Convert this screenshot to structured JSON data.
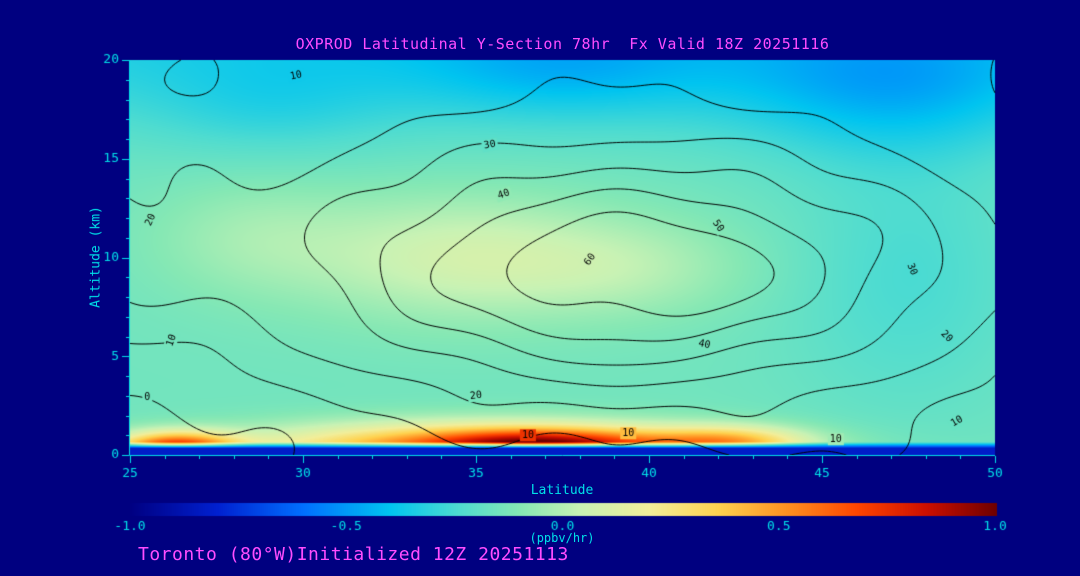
{
  "header": {
    "title": "OXPROD Latitudinal Y-Section 78hr  Fx Valid 18Z 20251116"
  },
  "footer": {
    "text": "Toronto (80°W)Initialized 12Z 20251113"
  },
  "colors": {
    "background": "#000080",
    "title_text": "#ff4dff",
    "axis_text": "#00e0e8",
    "contour": "#000000"
  },
  "chart_data": {
    "type": "heatmap",
    "subtype": "filled-contour-section",
    "title": "OXPROD Latitudinal Y-Section 78hr  Fx Valid 18Z 20251116",
    "xlabel": "Latitude",
    "ylabel": "Altitude (km)",
    "x_range": [
      25,
      50
    ],
    "y_range": [
      0,
      20
    ],
    "x_ticks": [
      "25",
      "30",
      "35",
      "40",
      "45",
      "50"
    ],
    "y_ticks": [
      "0",
      "5",
      "10",
      "15",
      "20"
    ],
    "grid": false,
    "contour_levels": [
      0,
      10,
      20,
      30,
      40,
      50,
      60
    ],
    "contour_labels": [
      {
        "lat": 29.8,
        "z": 19.2,
        "text": "10",
        "rot": -12
      },
      {
        "lat": 25.6,
        "z": 11.9,
        "text": "20",
        "rot": -65
      },
      {
        "lat": 26.2,
        "z": 5.8,
        "text": "10",
        "rot": -70
      },
      {
        "lat": 25.5,
        "z": 2.9,
        "text": "0",
        "rot": 0
      },
      {
        "lat": 35.4,
        "z": 15.7,
        "text": "30",
        "rot": -10
      },
      {
        "lat": 35.8,
        "z": 13.2,
        "text": "40",
        "rot": -18
      },
      {
        "lat": 38.3,
        "z": 9.9,
        "text": "60",
        "rot": -55
      },
      {
        "lat": 42.0,
        "z": 11.6,
        "text": "50",
        "rot": 55
      },
      {
        "lat": 41.6,
        "z": 5.6,
        "text": "40",
        "rot": 12
      },
      {
        "lat": 35.0,
        "z": 3.0,
        "text": "20",
        "rot": -6
      },
      {
        "lat": 47.6,
        "z": 9.4,
        "text": "30",
        "rot": 68
      },
      {
        "lat": 48.6,
        "z": 6.0,
        "text": "20",
        "rot": 45
      },
      {
        "lat": 36.5,
        "z": 1.0,
        "text": "10",
        "rot": 0
      },
      {
        "lat": 39.4,
        "z": 1.1,
        "text": "10",
        "rot": 0
      },
      {
        "lat": 45.4,
        "z": 0.8,
        "text": "10",
        "rot": 0
      },
      {
        "lat": 48.9,
        "z": 1.7,
        "text": "10",
        "rot": -30
      }
    ],
    "colorbar": {
      "min": -1.0,
      "max": 1.0,
      "ticks": [
        "-1.0",
        "-0.5",
        "0.0",
        "0.5",
        "1.0"
      ],
      "units": "(ppbv/hr)",
      "stops": [
        {
          "t": 0.0,
          "c": "#000082"
        },
        {
          "t": 0.1,
          "c": "#0020d0"
        },
        {
          "t": 0.2,
          "c": "#0070ff"
        },
        {
          "t": 0.3,
          "c": "#00c4f0"
        },
        {
          "t": 0.38,
          "c": "#4fdcd0"
        },
        {
          "t": 0.45,
          "c": "#86e8b4"
        },
        {
          "t": 0.52,
          "c": "#c8f2b4"
        },
        {
          "t": 0.6,
          "c": "#f2ee9a"
        },
        {
          "t": 0.68,
          "c": "#ffd24f"
        },
        {
          "t": 0.76,
          "c": "#ff9020"
        },
        {
          "t": 0.84,
          "c": "#ff4500"
        },
        {
          "t": 0.92,
          "c": "#cc0f00"
        },
        {
          "t": 1.0,
          "c": "#700000"
        }
      ]
    },
    "field_model": {
      "contour_field": {
        "components": [
          {
            "a": 66,
            "lat": 39.5,
            "sl": 9.8,
            "z": 9.3,
            "sz": 6.4
          },
          {
            "a": 16,
            "lat": 24.0,
            "sl": 4.0,
            "z": 11.0,
            "sz": 5.0
          },
          {
            "a": 7,
            "lat": 41.6,
            "sl": 1.8,
            "z": 9.2,
            "sz": 1.5
          },
          {
            "a": 13,
            "lat": 37.0,
            "sl": 26.0,
            "z": 22.0,
            "sz": 9.0
          },
          {
            "a": -10,
            "lat": 25.0,
            "sl": 3.5,
            "z": 0.0,
            "sz": 3.0
          },
          {
            "a": 6,
            "lat": 46.5,
            "sl": 3.5,
            "z": 0.5,
            "sz": 1.8
          }
        ],
        "waves": [
          {
            "a": 2.2,
            "fl": 0.75,
            "pl": 0.8,
            "fz": 0.9,
            "pz": 0.3
          },
          {
            "a": 1.4,
            "fl": 1.6,
            "pl": 2.0,
            "fz": 0.5,
            "pz": 1.1
          }
        ]
      },
      "fill_field": {
        "base": -0.15,
        "components": [
          {
            "a": -0.22,
            "lat": 38.0,
            "sl": 30.0,
            "z": 21.0,
            "sz": 4.2
          },
          {
            "a": -0.18,
            "lat": 47.0,
            "sl": 4.5,
            "z": 18.5,
            "sz": 3.5
          },
          {
            "a": -0.12,
            "lat": 37.5,
            "sl": 4.0,
            "z": 19.5,
            "sz": 2.5
          },
          {
            "a": -0.1,
            "lat": 47.5,
            "sl": 3.5,
            "z": 9.0,
            "sz": 7.0
          },
          {
            "a": -0.08,
            "lat": 29.0,
            "sl": 3.5,
            "z": 17.5,
            "sz": 2.5
          },
          {
            "a": 0.22,
            "lat": 34.5,
            "sl": 4.5,
            "z": 10.0,
            "sz": 3.2
          },
          {
            "a": 0.12,
            "lat": 39.5,
            "sl": 3.5,
            "z": 9.5,
            "sz": 2.5
          },
          {
            "a": 0.1,
            "lat": 28.5,
            "sl": 3.0,
            "z": 11.0,
            "sz": 3.0
          },
          {
            "a": 0.8,
            "lat": 35.5,
            "sl": 6.5,
            "z": 0.3,
            "sz": 1.25
          },
          {
            "a": 0.9,
            "lat": 26.3,
            "sl": 1.7,
            "z": 0.3,
            "sz": 0.8
          },
          {
            "a": 0.5,
            "lat": 37.0,
            "sl": 3.0,
            "z": 0.5,
            "sz": 0.75
          },
          {
            "a": 0.45,
            "lat": 42.3,
            "sl": 2.2,
            "z": 0.6,
            "sz": 0.8
          }
        ],
        "surface_sink": {
          "depth": 0.32,
          "value": -0.82
        }
      }
    }
  }
}
